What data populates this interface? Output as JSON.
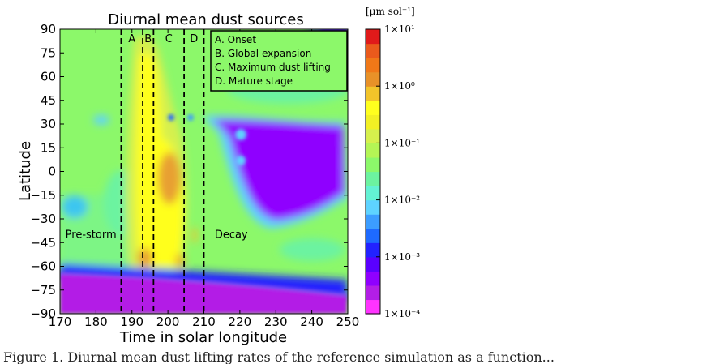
{
  "chart_data": {
    "type": "heatmap",
    "title": "Diurnal mean dust sources",
    "xlabel": "Time in solar longitude",
    "ylabel": "Latitude",
    "xlim": [
      170,
      250
    ],
    "ylim": [
      -90,
      90
    ],
    "x_ticks": [
      170,
      180,
      190,
      200,
      210,
      220,
      230,
      240,
      250
    ],
    "y_ticks": [
      90,
      75,
      60,
      45,
      30,
      15,
      0,
      -15,
      -30,
      -45,
      -60,
      -75,
      -90
    ],
    "colorbar": {
      "unit_label": "[μm sol⁻¹]",
      "scale": "log",
      "range": [
        0.0001,
        10
      ],
      "tick_labels": [
        "1×10¹",
        "1×10⁰",
        "1×10⁻¹",
        "1×10⁻²",
        "1×10⁻³",
        "1×10⁻⁴"
      ],
      "tick_values": [
        10,
        1,
        0.1,
        0.01,
        0.001,
        0.0001
      ],
      "colors_low_to_high": [
        "#ff33ff",
        "#b31ee6",
        "#8f00ff",
        "#5a00ff",
        "#2222ff",
        "#1e6aff",
        "#3c9dff",
        "#5ed3ff",
        "#63f2d4",
        "#6cf3a0",
        "#8cf86a",
        "#b4f555",
        "#d6f04d",
        "#f2f024",
        "#ffff1e",
        "#f2c42a",
        "#e89128",
        "#f07818",
        "#ea5a1c",
        "#e01a1a"
      ]
    },
    "phase_lines": [
      {
        "x": 187,
        "label": "A"
      },
      {
        "x": 193,
        "label": "B"
      },
      {
        "x": 196,
        "label": "C"
      },
      {
        "x": 204.5,
        "label": "D"
      },
      {
        "x": 210
      }
    ],
    "annotations": [
      {
        "text": "Pre-storm",
        "x": 171.5,
        "y": -42
      },
      {
        "text": "Decay",
        "x": 213,
        "y": -42
      }
    ],
    "legend": {
      "placement": "top-right",
      "entries": [
        "A. Onset",
        "B. Global expansion",
        "C. Maximum dust lifting",
        "D. Mature stage"
      ]
    },
    "regions": [
      {
        "name": "polar-cap",
        "lat_range": [
          -90,
          -65
        ],
        "lon_range": [
          170,
          250
        ],
        "value": 0.0002
      },
      {
        "name": "storm-decay-zone",
        "lat_range": [
          -35,
          33
        ],
        "lon_range": [
          210,
          248
        ],
        "value": 0.0004
      },
      {
        "name": "onset-core",
        "lat_range": [
          -58,
          -38
        ],
        "lon_range": [
          190,
          194
        ],
        "value": 1.5
      },
      {
        "name": "max-lifting-core",
        "lat_range": [
          -30,
          8
        ],
        "lon_range": [
          197,
          203
        ],
        "value": 1.6
      },
      {
        "name": "mature-core",
        "lat_range": [
          -62,
          -50
        ],
        "lon_range": [
          201,
          205
        ],
        "value": 1.2
      }
    ]
  },
  "caption": {
    "text": "Figure 1. Diurnal mean dust lifting rates of the reference simulation as a function..."
  }
}
